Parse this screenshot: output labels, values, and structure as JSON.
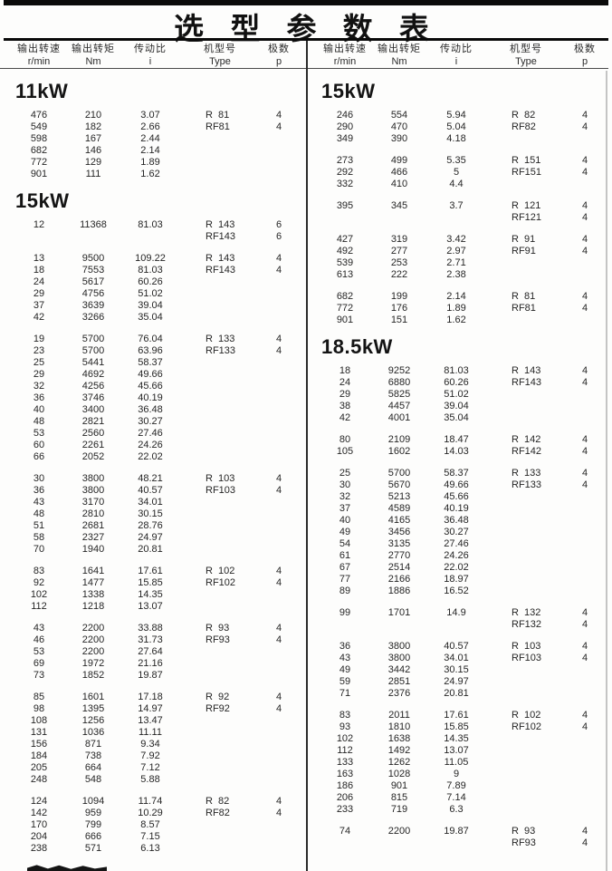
{
  "title": "选 型 参 数 表",
  "column_headers": {
    "speed_label": "输出转速",
    "speed_unit": "r/min",
    "torque_label": "输出转矩",
    "torque_unit": "Nm",
    "ratio_label": "传动比",
    "ratio_unit": "i",
    "model_label": "机型号",
    "model_unit": "Type",
    "poles_label": "极数",
    "poles_unit": "p"
  },
  "columns": [
    {
      "side": "left",
      "sections": [
        {
          "power": "11kW",
          "groups": [
            [
              [
                "476",
                "210",
                "3.07",
                "R  81",
                "4"
              ],
              [
                "549",
                "182",
                "2.66",
                "RF81",
                "4"
              ],
              [
                "598",
                "167",
                "2.44",
                "",
                ""
              ],
              [
                "682",
                "146",
                "2.14",
                "",
                ""
              ],
              [
                "772",
                "129",
                "1.89",
                "",
                ""
              ],
              [
                "901",
                "111",
                "1.62",
                "",
                ""
              ]
            ]
          ]
        },
        {
          "power": "15kW",
          "groups": [
            [
              [
                "12",
                "11368",
                "81.03",
                "R  143",
                "6"
              ],
              [
                "",
                "",
                "",
                "RF143",
                "6"
              ]
            ],
            [
              [
                "13",
                "9500",
                "109.22",
                "R  143",
                "4"
              ],
              [
                "18",
                "7553",
                "81.03",
                "RF143",
                "4"
              ],
              [
                "24",
                "5617",
                "60.26",
                "",
                ""
              ],
              [
                "29",
                "4756",
                "51.02",
                "",
                ""
              ],
              [
                "37",
                "3639",
                "39.04",
                "",
                ""
              ],
              [
                "42",
                "3266",
                "35.04",
                "",
                ""
              ]
            ],
            [
              [
                "19",
                "5700",
                "76.04",
                "R  133",
                "4"
              ],
              [
                "23",
                "5700",
                "63.96",
                "RF133",
                "4"
              ],
              [
                "25",
                "5441",
                "58.37",
                "",
                ""
              ],
              [
                "29",
                "4692",
                "49.66",
                "",
                ""
              ],
              [
                "32",
                "4256",
                "45.66",
                "",
                ""
              ],
              [
                "36",
                "3746",
                "40.19",
                "",
                ""
              ],
              [
                "40",
                "3400",
                "36.48",
                "",
                ""
              ],
              [
                "48",
                "2821",
                "30.27",
                "",
                ""
              ],
              [
                "53",
                "2560",
                "27.46",
                "",
                ""
              ],
              [
                "60",
                "2261",
                "24.26",
                "",
                ""
              ],
              [
                "66",
                "2052",
                "22.02",
                "",
                ""
              ]
            ],
            [
              [
                "30",
                "3800",
                "48.21",
                "R  103",
                "4"
              ],
              [
                "36",
                "3800",
                "40.57",
                "RF103",
                "4"
              ],
              [
                "43",
                "3170",
                "34.01",
                "",
                ""
              ],
              [
                "48",
                "2810",
                "30.15",
                "",
                ""
              ],
              [
                "51",
                "2681",
                "28.76",
                "",
                ""
              ],
              [
                "58",
                "2327",
                "24.97",
                "",
                ""
              ],
              [
                "70",
                "1940",
                "20.81",
                "",
                ""
              ]
            ],
            [
              [
                "83",
                "1641",
                "17.61",
                "R  102",
                "4"
              ],
              [
                "92",
                "1477",
                "15.85",
                "RF102",
                "4"
              ],
              [
                "102",
                "1338",
                "14.35",
                "",
                ""
              ],
              [
                "112",
                "1218",
                "13.07",
                "",
                ""
              ]
            ],
            [
              [
                "43",
                "2200",
                "33.88",
                "R  93",
                "4"
              ],
              [
                "46",
                "2200",
                "31.73",
                "RF93",
                "4"
              ],
              [
                "53",
                "2200",
                "27.64",
                "",
                ""
              ],
              [
                "69",
                "1972",
                "21.16",
                "",
                ""
              ],
              [
                "73",
                "1852",
                "19.87",
                "",
                ""
              ]
            ],
            [
              [
                "85",
                "1601",
                "17.18",
                "R  92",
                "4"
              ],
              [
                "98",
                "1395",
                "14.97",
                "RF92",
                "4"
              ],
              [
                "108",
                "1256",
                "13.47",
                "",
                ""
              ],
              [
                "131",
                "1036",
                "11.11",
                "",
                ""
              ],
              [
                "156",
                "871",
                "9.34",
                "",
                ""
              ],
              [
                "184",
                "738",
                "7.92",
                "",
                ""
              ],
              [
                "205",
                "664",
                "7.12",
                "",
                ""
              ],
              [
                "248",
                "548",
                "5.88",
                "",
                ""
              ]
            ],
            [
              [
                "124",
                "1094",
                "11.74",
                "R  82",
                "4"
              ],
              [
                "142",
                "959",
                "10.29",
                "RF82",
                "4"
              ],
              [
                "170",
                "799",
                "8.57",
                "",
                ""
              ],
              [
                "204",
                "666",
                "7.15",
                "",
                ""
              ],
              [
                "238",
                "571",
                "6.13",
                "",
                ""
              ]
            ]
          ]
        }
      ]
    },
    {
      "side": "right",
      "sections": [
        {
          "power": "15kW",
          "groups": [
            [
              [
                "246",
                "554",
                "5.94",
                "R  82",
                "4"
              ],
              [
                "290",
                "470",
                "5.04",
                "RF82",
                "4"
              ],
              [
                "349",
                "390",
                "4.18",
                "",
                ""
              ]
            ],
            [
              [
                "273",
                "499",
                "5.35",
                "R  151",
                "4"
              ],
              [
                "292",
                "466",
                "5",
                "RF151",
                "4"
              ],
              [
                "332",
                "410",
                "4.4",
                "",
                ""
              ]
            ],
            [
              [
                "395",
                "345",
                "3.7",
                "R  121",
                "4"
              ],
              [
                "",
                "",
                "",
                "RF121",
                "4"
              ]
            ],
            [
              [
                "427",
                "319",
                "3.42",
                "R  91",
                "4"
              ],
              [
                "492",
                "277",
                "2.97",
                "RF91",
                "4"
              ],
              [
                "539",
                "253",
                "2.71",
                "",
                ""
              ],
              [
                "613",
                "222",
                "2.38",
                "",
                ""
              ]
            ],
            [
              [
                "682",
                "199",
                "2.14",
                "R  81",
                "4"
              ],
              [
                "772",
                "176",
                "1.89",
                "RF81",
                "4"
              ],
              [
                "901",
                "151",
                "1.62",
                "",
                ""
              ]
            ]
          ]
        },
        {
          "power": "18.5kW",
          "groups": [
            [
              [
                "18",
                "9252",
                "81.03",
                "R  143",
                "4"
              ],
              [
                "24",
                "6880",
                "60.26",
                "RF143",
                "4"
              ],
              [
                "29",
                "5825",
                "51.02",
                "",
                ""
              ],
              [
                "38",
                "4457",
                "39.04",
                "",
                ""
              ],
              [
                "42",
                "4001",
                "35.04",
                "",
                ""
              ]
            ],
            [
              [
                "80",
                "2109",
                "18.47",
                "R  142",
                "4"
              ],
              [
                "105",
                "1602",
                "14.03",
                "RF142",
                "4"
              ]
            ],
            [
              [
                "25",
                "5700",
                "58.37",
                "R  133",
                "4"
              ],
              [
                "30",
                "5670",
                "49.66",
                "RF133",
                "4"
              ],
              [
                "32",
                "5213",
                "45.66",
                "",
                ""
              ],
              [
                "37",
                "4589",
                "40.19",
                "",
                ""
              ],
              [
                "40",
                "4165",
                "36.48",
                "",
                ""
              ],
              [
                "49",
                "3456",
                "30.27",
                "",
                ""
              ],
              [
                "54",
                "3135",
                "27.46",
                "",
                ""
              ],
              [
                "61",
                "2770",
                "24.26",
                "",
                ""
              ],
              [
                "67",
                "2514",
                "22.02",
                "",
                ""
              ],
              [
                "77",
                "2166",
                "18.97",
                "",
                ""
              ],
              [
                "89",
                "1886",
                "16.52",
                "",
                ""
              ]
            ],
            [
              [
                "99",
                "1701",
                "14.9",
                "R  132",
                "4"
              ],
              [
                "",
                "",
                "",
                "RF132",
                "4"
              ]
            ],
            [
              [
                "36",
                "3800",
                "40.57",
                "R  103",
                "4"
              ],
              [
                "43",
                "3800",
                "34.01",
                "RF103",
                "4"
              ],
              [
                "49",
                "3442",
                "30.15",
                "",
                ""
              ],
              [
                "59",
                "2851",
                "24.97",
                "",
                ""
              ],
              [
                "71",
                "2376",
                "20.81",
                "",
                ""
              ]
            ],
            [
              [
                "83",
                "2011",
                "17.61",
                "R  102",
                "4"
              ],
              [
                "93",
                "1810",
                "15.85",
                "RF102",
                "4"
              ],
              [
                "102",
                "1638",
                "14.35",
                "",
                ""
              ],
              [
                "112",
                "1492",
                "13.07",
                "",
                ""
              ],
              [
                "133",
                "1262",
                "11.05",
                "",
                ""
              ],
              [
                "163",
                "1028",
                "9",
                "",
                ""
              ],
              [
                "186",
                "901",
                "7.89",
                "",
                ""
              ],
              [
                "206",
                "815",
                "7.14",
                "",
                ""
              ],
              [
                "233",
                "719",
                "6.3",
                "",
                ""
              ]
            ],
            [
              [
                "74",
                "2200",
                "19.87",
                "R  93",
                "4"
              ],
              [
                "",
                "",
                "",
                "RF93",
                "4"
              ]
            ]
          ]
        }
      ]
    }
  ],
  "colors": {
    "rule": "#0a0a0a",
    "text": "#1e1e1e",
    "divider": "#2a2a2a"
  }
}
